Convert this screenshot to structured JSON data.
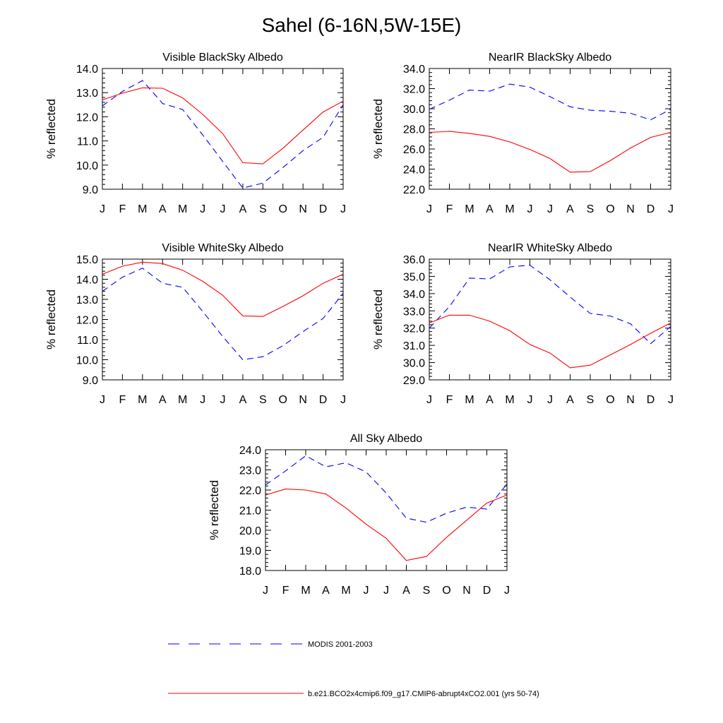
{
  "title": "Sahel (6-16N,5W-15E)",
  "legend": [
    {
      "label": "MODIS 2001-2003",
      "color": "#0000ff",
      "dash": "dashed"
    },
    {
      "label": "b.e21.BCO2x4cmip6.f09_g17.CMIP6-abrupt4xCO2.001 (yrs 50-74)",
      "color": "#ff0000",
      "dash": "solid"
    }
  ],
  "chart_data": [
    {
      "type": "line",
      "title": "Visible BlackSky Albedo",
      "ylabel": "% reflected",
      "categories": [
        "J",
        "F",
        "M",
        "A",
        "M",
        "J",
        "J",
        "A",
        "S",
        "O",
        "N",
        "D",
        "J"
      ],
      "ylim": [
        9.0,
        14.0
      ],
      "yticks": [
        "9.0",
        "10.0",
        "11.0",
        "12.0",
        "13.0",
        "14.0"
      ],
      "series": [
        {
          "color": "#0000ff",
          "dash": "dashed",
          "values": [
            12.45,
            13.05,
            13.5,
            12.55,
            12.3,
            11.25,
            10.15,
            9.05,
            9.25,
            9.9,
            10.6,
            11.15,
            12.5
          ]
        },
        {
          "color": "#ff0000",
          "dash": "solid",
          "values": [
            12.7,
            12.98,
            13.2,
            13.18,
            12.78,
            12.1,
            11.3,
            10.1,
            10.05,
            10.7,
            11.45,
            12.2,
            12.65
          ]
        }
      ]
    },
    {
      "type": "line",
      "title": "NearIR BlackSky Albedo",
      "ylabel": "% reflected",
      "categories": [
        "J",
        "F",
        "M",
        "A",
        "M",
        "J",
        "J",
        "A",
        "S",
        "O",
        "N",
        "D",
        "J"
      ],
      "ylim": [
        22.0,
        34.0
      ],
      "yticks": [
        "22.0",
        "24.0",
        "26.0",
        "28.0",
        "30.0",
        "32.0",
        "34.0"
      ],
      "series": [
        {
          "color": "#0000ff",
          "dash": "dashed",
          "values": [
            29.95,
            30.85,
            31.85,
            31.75,
            32.45,
            32.15,
            31.2,
            30.2,
            29.85,
            29.75,
            29.55,
            28.9,
            29.95
          ]
        },
        {
          "color": "#ff0000",
          "dash": "solid",
          "values": [
            27.65,
            27.75,
            27.55,
            27.25,
            26.7,
            25.95,
            25.05,
            23.7,
            23.75,
            24.85,
            26.1,
            27.15,
            27.65
          ]
        }
      ]
    },
    {
      "type": "line",
      "title": "Visible WhiteSky Albedo",
      "ylabel": "% reflected",
      "categories": [
        "J",
        "F",
        "M",
        "A",
        "M",
        "J",
        "J",
        "A",
        "S",
        "O",
        "N",
        "D",
        "J"
      ],
      "ylim": [
        9.0,
        15.0
      ],
      "yticks": [
        "9.0",
        "10.0",
        "11.0",
        "12.0",
        "13.0",
        "14.0",
        "15.0"
      ],
      "series": [
        {
          "color": "#0000ff",
          "dash": "dashed",
          "values": [
            13.4,
            14.1,
            14.55,
            13.8,
            13.6,
            12.4,
            11.15,
            10.0,
            10.15,
            10.7,
            11.4,
            12.05,
            13.3
          ]
        },
        {
          "color": "#ff0000",
          "dash": "solid",
          "values": [
            14.25,
            14.65,
            14.85,
            14.78,
            14.45,
            13.9,
            13.2,
            12.18,
            12.15,
            12.65,
            13.18,
            13.8,
            14.25
          ]
        }
      ]
    },
    {
      "type": "line",
      "title": "NearIR WhiteSky Albedo",
      "ylabel": "% reflected",
      "categories": [
        "J",
        "F",
        "M",
        "A",
        "M",
        "J",
        "J",
        "A",
        "S",
        "O",
        "N",
        "D",
        "J"
      ],
      "ylim": [
        29.0,
        36.0
      ],
      "yticks": [
        "29.0",
        "30.0",
        "31.0",
        "32.0",
        "33.0",
        "34.0",
        "35.0",
        "36.0"
      ],
      "series": [
        {
          "color": "#0000ff",
          "dash": "dashed",
          "values": [
            32.0,
            33.25,
            34.9,
            34.85,
            35.55,
            35.65,
            34.8,
            33.8,
            32.85,
            32.7,
            32.25,
            31.1,
            32.1
          ]
        },
        {
          "color": "#ff0000",
          "dash": "solid",
          "values": [
            32.3,
            32.75,
            32.75,
            32.4,
            31.85,
            31.05,
            30.55,
            29.7,
            29.85,
            30.45,
            31.05,
            31.7,
            32.3
          ]
        }
      ]
    },
    {
      "type": "line",
      "title": "All Sky Albedo",
      "ylabel": "% reflected",
      "categories": [
        "J",
        "F",
        "M",
        "A",
        "M",
        "J",
        "J",
        "A",
        "S",
        "O",
        "N",
        "D",
        "J"
      ],
      "ylim": [
        18.0,
        24.0
      ],
      "yticks": [
        "18.0",
        "19.0",
        "20.0",
        "21.0",
        "22.0",
        "23.0",
        "24.0"
      ],
      "series": [
        {
          "color": "#0000ff",
          "dash": "dashed",
          "values": [
            22.25,
            22.95,
            23.7,
            23.15,
            23.35,
            22.9,
            21.85,
            20.6,
            20.4,
            20.85,
            21.15,
            21.05,
            22.3
          ]
        },
        {
          "color": "#ff0000",
          "dash": "solid",
          "values": [
            21.75,
            22.05,
            22.0,
            21.8,
            21.1,
            20.3,
            19.6,
            18.5,
            18.7,
            19.65,
            20.5,
            21.35,
            21.75
          ]
        }
      ]
    }
  ]
}
